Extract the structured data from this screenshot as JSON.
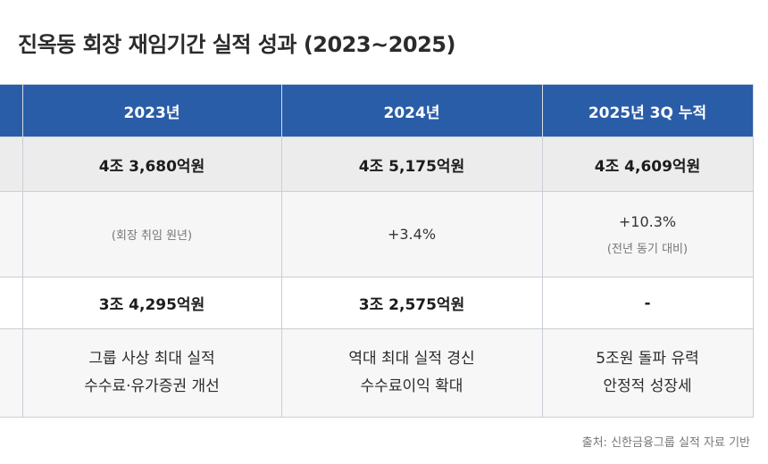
{
  "title": "진옥동 회장 재임기간 실적 성과 (2023~2025)",
  "table": {
    "headers": [
      "2023년",
      "2024년",
      "2025년 3Q 누적"
    ],
    "revenue": [
      "4조 3,680억원",
      "4조 5,175억원",
      "4조 4,609억원"
    ],
    "growth": {
      "y2023_note": "(회장 취임 원년)",
      "y2024_value": "+3.4%",
      "y2025_value": "+10.3%",
      "y2025_note": "(전년 동기 대비)"
    },
    "profit": [
      "3조 4,295억원",
      "3조 2,575억원",
      "-"
    ],
    "summary": [
      [
        "그룹 사상 최대 실적",
        "수수료·유가증권 개선"
      ],
      [
        "역대 최대 실적 경신",
        "수수료이익 확대"
      ],
      [
        "5조원 돌파 유력",
        "안정적 성장세"
      ]
    ]
  },
  "colors": {
    "header_bg": "#2a5da8",
    "header_text": "#ffffff",
    "revenue_row_bg": "#ececec",
    "border": "#c9ced6"
  },
  "source": "출처: 신한금융그룹 실적 자료 기반"
}
